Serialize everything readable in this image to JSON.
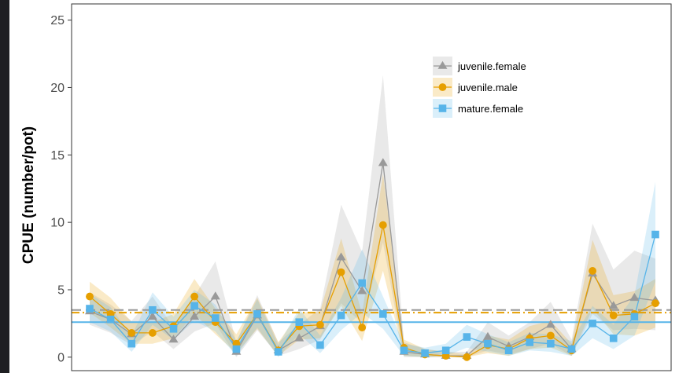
{
  "chart_data": {
    "type": "line",
    "title": "",
    "xlabel": "",
    "ylabel": "CPUE (number/pot)",
    "ylim": [
      -1.0,
      26.2
    ],
    "y_ticks": [
      0,
      5,
      10,
      15,
      20,
      25
    ],
    "x_count": 28,
    "grid": false,
    "legend_position": "top-right",
    "series": [
      {
        "name": "juvenile.female",
        "color": "#999999",
        "marker": "triangle",
        "mean_line_style": "dashed",
        "mean": 3.5,
        "values": [
          3.4,
          2.8,
          1.7,
          3.0,
          1.3,
          3.0,
          4.5,
          0.4,
          3.1,
          0.5,
          1.4,
          2.3,
          7.4,
          4.9,
          14.4,
          0.4,
          0.2,
          0.1,
          0.1,
          1.5,
          0.8,
          1.5,
          2.4,
          0.6,
          6.2,
          3.8,
          4.4,
          4.2
        ],
        "lower": [
          2.4,
          1.8,
          0.9,
          1.9,
          0.6,
          1.9,
          2.5,
          0.0,
          2.0,
          0.1,
          0.6,
          1.3,
          4.0,
          2.5,
          8.5,
          0.0,
          0.0,
          0.0,
          0.0,
          0.5,
          0.2,
          0.6,
          1.0,
          0.1,
          3.2,
          2.0,
          2.1,
          2.0
        ],
        "upper": [
          4.8,
          3.9,
          2.7,
          4.5,
          2.2,
          4.5,
          7.1,
          1.1,
          4.6,
          1.1,
          2.4,
          3.6,
          11.3,
          7.8,
          20.9,
          1.1,
          0.6,
          0.4,
          0.4,
          2.6,
          1.6,
          2.6,
          4.1,
          1.3,
          9.9,
          6.5,
          7.9,
          7.3
        ]
      },
      {
        "name": "juvenile.male",
        "color": "#e69f00",
        "marker": "circle",
        "mean_line_style": "dotdash",
        "mean": 3.3,
        "values": [
          4.5,
          3.2,
          1.8,
          1.8,
          2.3,
          4.5,
          2.6,
          1.0,
          3.2,
          0.5,
          2.3,
          2.4,
          6.3,
          2.2,
          9.8,
          0.7,
          0.2,
          0.1,
          0.0,
          0.9,
          0.6,
          1.4,
          1.6,
          0.5,
          6.4,
          3.1,
          3.2,
          4.0
        ],
        "lower": [
          3.3,
          2.2,
          1.0,
          1.0,
          1.4,
          3.2,
          1.7,
          0.3,
          2.1,
          0.1,
          1.3,
          1.4,
          3.8,
          1.2,
          6.4,
          0.1,
          0.0,
          0.0,
          0.0,
          0.3,
          0.1,
          0.6,
          0.7,
          0.1,
          3.6,
          1.7,
          1.6,
          2.2
        ],
        "upper": [
          5.6,
          4.4,
          2.6,
          2.6,
          3.2,
          5.8,
          3.6,
          1.7,
          4.4,
          1.1,
          3.3,
          3.4,
          8.8,
          3.2,
          13.6,
          1.3,
          0.6,
          0.4,
          0.2,
          1.6,
          1.3,
          2.3,
          2.7,
          1.0,
          8.7,
          4.6,
          4.9,
          5.8
        ]
      },
      {
        "name": "mature.female",
        "color": "#56b4e9",
        "marker": "square",
        "mean_line_style": "solid",
        "mean": 2.6,
        "values": [
          3.6,
          2.8,
          1.0,
          3.5,
          2.1,
          3.8,
          2.9,
          0.6,
          3.2,
          0.4,
          2.6,
          0.9,
          3.1,
          5.5,
          3.2,
          0.5,
          0.3,
          0.5,
          1.5,
          1.0,
          0.5,
          1.1,
          1.0,
          0.6,
          2.5,
          1.4,
          3.0,
          9.1
        ],
        "lower": [
          2.6,
          1.9,
          0.4,
          2.4,
          1.3,
          2.7,
          1.9,
          0.1,
          2.2,
          0.0,
          1.7,
          0.3,
          2.0,
          3.3,
          2.1,
          0.1,
          0.0,
          0.1,
          0.7,
          0.4,
          0.1,
          0.5,
          0.4,
          0.1,
          1.4,
          0.6,
          1.6,
          5.6
        ],
        "upper": [
          4.7,
          3.7,
          1.6,
          4.8,
          3.0,
          5.0,
          3.9,
          1.2,
          4.3,
          0.9,
          3.6,
          1.6,
          4.4,
          8.0,
          4.5,
          1.0,
          0.7,
          1.0,
          2.4,
          1.7,
          1.1,
          1.8,
          1.7,
          1.2,
          3.8,
          2.4,
          4.6,
          13.0
        ]
      }
    ]
  }
}
